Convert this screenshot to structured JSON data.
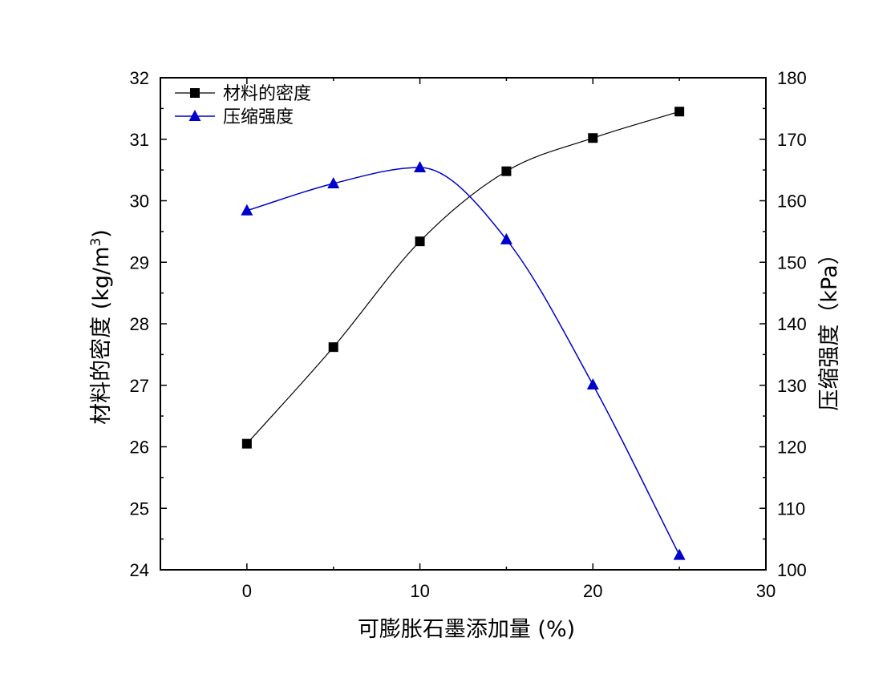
{
  "chart_data": {
    "type": "line",
    "x": [
      0,
      5,
      10,
      15,
      20,
      25
    ],
    "xlabel": "可膨胀石墨添加量 (%)",
    "xlim": [
      -5,
      30
    ],
    "xticks": [
      0,
      10,
      20,
      30
    ],
    "ylabel_left_main": "材料的密度 (kg/m",
    "ylabel_left_sup": "3",
    "ylabel_left_close": ")",
    "ylim_left": [
      24,
      32
    ],
    "yticks_left": [
      24,
      25,
      26,
      27,
      28,
      29,
      30,
      31,
      32
    ],
    "ylabel_right": "压缩强度（kPa）",
    "ylim_right": [
      100,
      180
    ],
    "yticks_right": [
      100,
      110,
      120,
      130,
      140,
      150,
      160,
      170,
      180
    ],
    "grid": false,
    "legend_position": "top-left",
    "series": [
      {
        "name": "材料的密度",
        "axis": "left",
        "marker": "square",
        "color": "#000000",
        "values": [
          26.05,
          27.62,
          29.34,
          30.48,
          31.02,
          31.45
        ]
      },
      {
        "name": "压缩强度",
        "axis": "right",
        "marker": "triangle",
        "color": "#0000cc",
        "values": [
          158.4,
          162.8,
          165.4,
          153.7,
          130.1,
          102.4
        ]
      }
    ]
  }
}
